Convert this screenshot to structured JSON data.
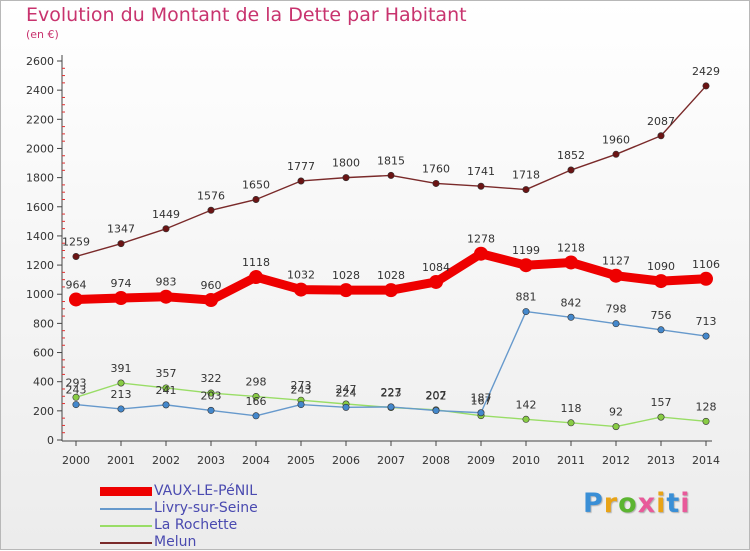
{
  "header": {
    "title": "Evolution du Montant de la Dette par Habitant",
    "subtitle": "(en €)"
  },
  "logo": {
    "text": "Proxiti",
    "colors": [
      "#3a8fd6",
      "#e8a316",
      "#5cb531",
      "#e85a9a",
      "#e8a316",
      "#3a8fd6",
      "#e85a9a"
    ]
  },
  "chart_data": {
    "type": "line",
    "title": "Evolution du Montant de la Dette par Habitant",
    "subtitle": "(en €)",
    "xlabel": "",
    "ylabel": "",
    "x": [
      "2000",
      "2001",
      "2002",
      "2003",
      "2004",
      "2005",
      "2006",
      "2007",
      "2008",
      "2009",
      "2010",
      "2011",
      "2012",
      "2013",
      "2014"
    ],
    "ylim": [
      0,
      2600
    ],
    "yticks": [
      0,
      200,
      400,
      600,
      800,
      1000,
      1200,
      1400,
      1600,
      1800,
      2000,
      2200,
      2400,
      2600
    ],
    "grid": false,
    "legend_position": "bottom-left",
    "series": [
      {
        "name": "Melun",
        "color": "#7a2a2a",
        "marker": "#6b1414",
        "values": [
          1259,
          1347,
          1449,
          1576,
          1650,
          1777,
          1800,
          1815,
          1760,
          1741,
          1718,
          1852,
          1960,
          2087,
          2429
        ]
      },
      {
        "name": "La Rochette",
        "color": "#99dd66",
        "marker": "#88cc44",
        "values": [
          293,
          391,
          357,
          322,
          298,
          273,
          247,
          223,
          207,
          167,
          142,
          118,
          92,
          157,
          128
        ]
      },
      {
        "name": "Livry-sur-Seine",
        "color": "#6699cc",
        "marker": "#4488cc",
        "values": [
          243,
          213,
          241,
          203,
          166,
          243,
          224,
          227,
          202,
          187,
          881,
          842,
          798,
          756,
          713
        ]
      },
      {
        "name": "VAUX-LE-PéNIL",
        "color": "#ee0000",
        "marker": "#ee0000",
        "values": [
          964,
          974,
          983,
          960,
          1118,
          1032,
          1028,
          1028,
          1084,
          1278,
          1199,
          1218,
          1127,
          1090,
          1106
        ]
      }
    ],
    "legend_order": [
      "VAUX-LE-PéNIL",
      "Livry-sur-Seine",
      "La Rochette",
      "Melun"
    ]
  }
}
